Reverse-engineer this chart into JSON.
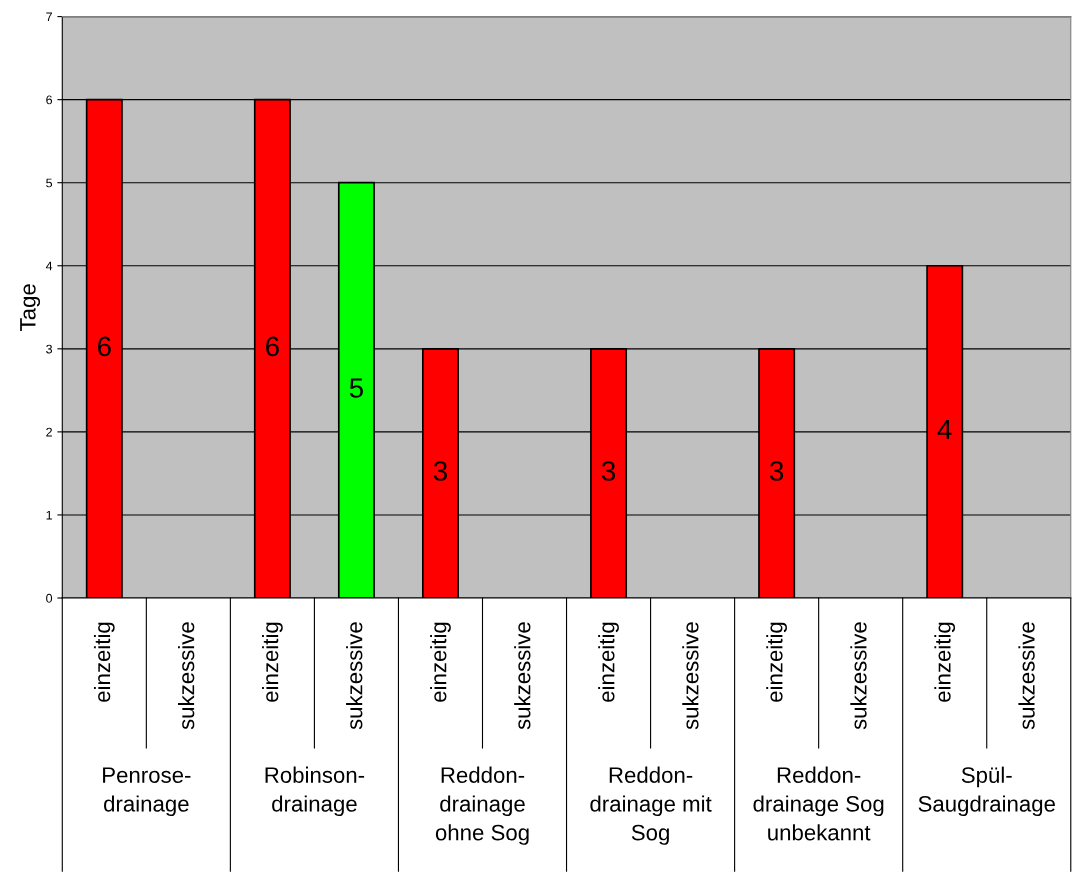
{
  "chart_data": {
    "type": "bar",
    "ylabel": "Tage",
    "categories": [
      "einzeitig",
      "sukzessive",
      "einzeitig",
      "sukzessive",
      "einzeitig",
      "sukzessive",
      "einzeitig",
      "sukzessive",
      "einzeitig",
      "sukzessive",
      "einzeitig",
      "sukzessive"
    ],
    "values": [
      6,
      null,
      6,
      5,
      3,
      null,
      3,
      null,
      3,
      null,
      4,
      null
    ],
    "colors": [
      "#ff0000",
      "#ff0000",
      "#ff0000",
      "#00ff00",
      "#ff0000",
      "#ff0000",
      "#ff0000",
      "#ff0000",
      "#ff0000",
      "#ff0000",
      "#ff0000",
      "#ff0000"
    ],
    "annotations": [
      "Penrose-\ndrainage",
      "Robinson-\ndrainage",
      "Reddon-\ndrainage\nohne Sog",
      "Reddon-\ndrainage mit\nSog",
      "Reddon-\ndrainage Sog\nunbekannt",
      "Spül-\nSaugdrainage"
    ],
    "ylim": [
      0,
      7
    ],
    "yticks": [
      0,
      1,
      2,
      3,
      4,
      5,
      6,
      7
    ],
    "grid": "y",
    "data_labels": true
  }
}
